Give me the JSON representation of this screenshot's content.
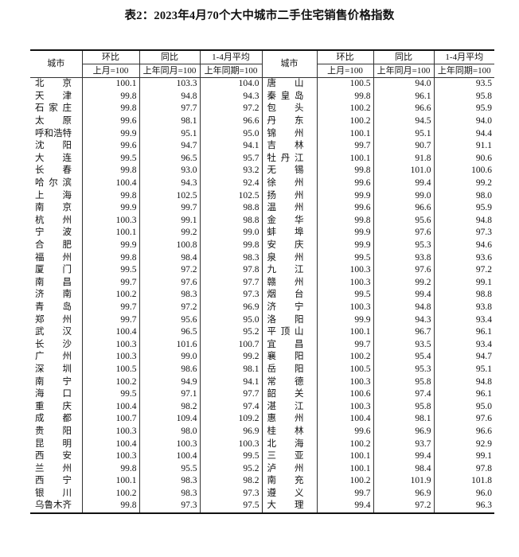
{
  "title": "表2：2023年4月70个大中城市二手住宅销售价格指数",
  "headers": {
    "city": "城市",
    "mom": "环比",
    "yoy": "同比",
    "avg": "1-4月平均",
    "mom_base": "上月=100",
    "yoy_base": "上年同月=100",
    "avg_base": "上年同期=100"
  },
  "left": [
    [
      "北京",
      "100.1",
      "103.3",
      "104.0"
    ],
    [
      "天津",
      "99.8",
      "94.8",
      "94.3"
    ],
    [
      "石家庄",
      "99.8",
      "97.7",
      "97.2"
    ],
    [
      "太原",
      "99.6",
      "98.1",
      "96.6"
    ],
    [
      "呼和浩特",
      "99.9",
      "95.1",
      "95.0"
    ],
    [
      "沈阳",
      "99.6",
      "94.7",
      "94.1"
    ],
    [
      "大连",
      "99.5",
      "96.5",
      "95.7"
    ],
    [
      "长春",
      "99.8",
      "93.0",
      "93.2"
    ],
    [
      "哈尔滨",
      "100.4",
      "94.3",
      "92.4"
    ],
    [
      "上海",
      "99.8",
      "102.5",
      "102.5"
    ],
    [
      "南京",
      "99.9",
      "99.7",
      "98.8"
    ],
    [
      "杭州",
      "100.3",
      "99.1",
      "98.8"
    ],
    [
      "宁波",
      "100.1",
      "99.2",
      "99.0"
    ],
    [
      "合肥",
      "99.9",
      "100.8",
      "99.8"
    ],
    [
      "福州",
      "99.8",
      "98.4",
      "98.3"
    ],
    [
      "厦门",
      "99.5",
      "97.2",
      "97.8"
    ],
    [
      "南昌",
      "99.7",
      "97.6",
      "97.7"
    ],
    [
      "济南",
      "100.2",
      "98.3",
      "97.3"
    ],
    [
      "青岛",
      "99.7",
      "97.2",
      "96.9"
    ],
    [
      "郑州",
      "99.7",
      "95.6",
      "95.0"
    ],
    [
      "武汉",
      "100.4",
      "96.5",
      "95.2"
    ],
    [
      "长沙",
      "100.3",
      "101.6",
      "100.7"
    ],
    [
      "广州",
      "100.3",
      "99.0",
      "99.2"
    ],
    [
      "深圳",
      "100.5",
      "98.6",
      "98.1"
    ],
    [
      "南宁",
      "100.2",
      "94.9",
      "94.1"
    ],
    [
      "海口",
      "99.5",
      "97.1",
      "97.7"
    ],
    [
      "重庆",
      "100.4",
      "98.2",
      "97.4"
    ],
    [
      "成都",
      "100.7",
      "109.4",
      "109.2"
    ],
    [
      "贵阳",
      "100.3",
      "98.0",
      "96.9"
    ],
    [
      "昆明",
      "100.4",
      "100.3",
      "100.3"
    ],
    [
      "西安",
      "100.3",
      "100.4",
      "99.5"
    ],
    [
      "兰州",
      "99.8",
      "95.5",
      "95.2"
    ],
    [
      "西宁",
      "100.1",
      "98.3",
      "98.2"
    ],
    [
      "银川",
      "100.2",
      "98.3",
      "97.3"
    ],
    [
      "乌鲁木齐",
      "99.8",
      "97.3",
      "97.5"
    ]
  ],
  "right": [
    [
      "唐山",
      "100.5",
      "94.0",
      "93.5"
    ],
    [
      "秦皇岛",
      "99.8",
      "96.1",
      "95.8"
    ],
    [
      "包头",
      "100.2",
      "96.6",
      "95.9"
    ],
    [
      "丹东",
      "100.2",
      "94.5",
      "94.0"
    ],
    [
      "锦州",
      "100.1",
      "95.1",
      "94.4"
    ],
    [
      "吉林",
      "99.7",
      "90.7",
      "91.1"
    ],
    [
      "牡丹江",
      "100.1",
      "91.8",
      "90.6"
    ],
    [
      "无锡",
      "99.8",
      "101.0",
      "100.6"
    ],
    [
      "徐州",
      "99.6",
      "99.4",
      "99.2"
    ],
    [
      "扬州",
      "99.9",
      "99.0",
      "98.0"
    ],
    [
      "温州",
      "99.6",
      "96.6",
      "95.9"
    ],
    [
      "金华",
      "99.8",
      "95.6",
      "94.8"
    ],
    [
      "蚌埠",
      "99.9",
      "97.6",
      "97.3"
    ],
    [
      "安庆",
      "99.9",
      "95.3",
      "94.6"
    ],
    [
      "泉州",
      "99.5",
      "93.8",
      "93.6"
    ],
    [
      "九江",
      "100.3",
      "97.6",
      "97.2"
    ],
    [
      "赣州",
      "100.3",
      "99.2",
      "99.1"
    ],
    [
      "烟台",
      "99.5",
      "99.4",
      "98.8"
    ],
    [
      "济宁",
      "100.3",
      "94.8",
      "93.8"
    ],
    [
      "洛阳",
      "99.9",
      "94.3",
      "93.4"
    ],
    [
      "平顶山",
      "100.1",
      "96.7",
      "96.1"
    ],
    [
      "宜昌",
      "99.7",
      "93.5",
      "93.4"
    ],
    [
      "襄阳",
      "100.2",
      "95.4",
      "94.7"
    ],
    [
      "岳阳",
      "100.5",
      "95.3",
      "95.1"
    ],
    [
      "常德",
      "100.3",
      "95.8",
      "94.8"
    ],
    [
      "韶关",
      "100.6",
      "97.4",
      "96.1"
    ],
    [
      "湛江",
      "100.3",
      "95.8",
      "95.0"
    ],
    [
      "惠州",
      "100.4",
      "98.1",
      "97.6"
    ],
    [
      "桂林",
      "99.6",
      "96.9",
      "96.6"
    ],
    [
      "北海",
      "100.2",
      "93.7",
      "92.9"
    ],
    [
      "三亚",
      "100.1",
      "99.4",
      "99.1"
    ],
    [
      "泸州",
      "100.1",
      "98.4",
      "97.8"
    ],
    [
      "南充",
      "100.2",
      "101.9",
      "101.8"
    ],
    [
      "遵义",
      "99.7",
      "96.9",
      "96.0"
    ],
    [
      "大理",
      "99.4",
      "97.2",
      "96.3"
    ]
  ]
}
